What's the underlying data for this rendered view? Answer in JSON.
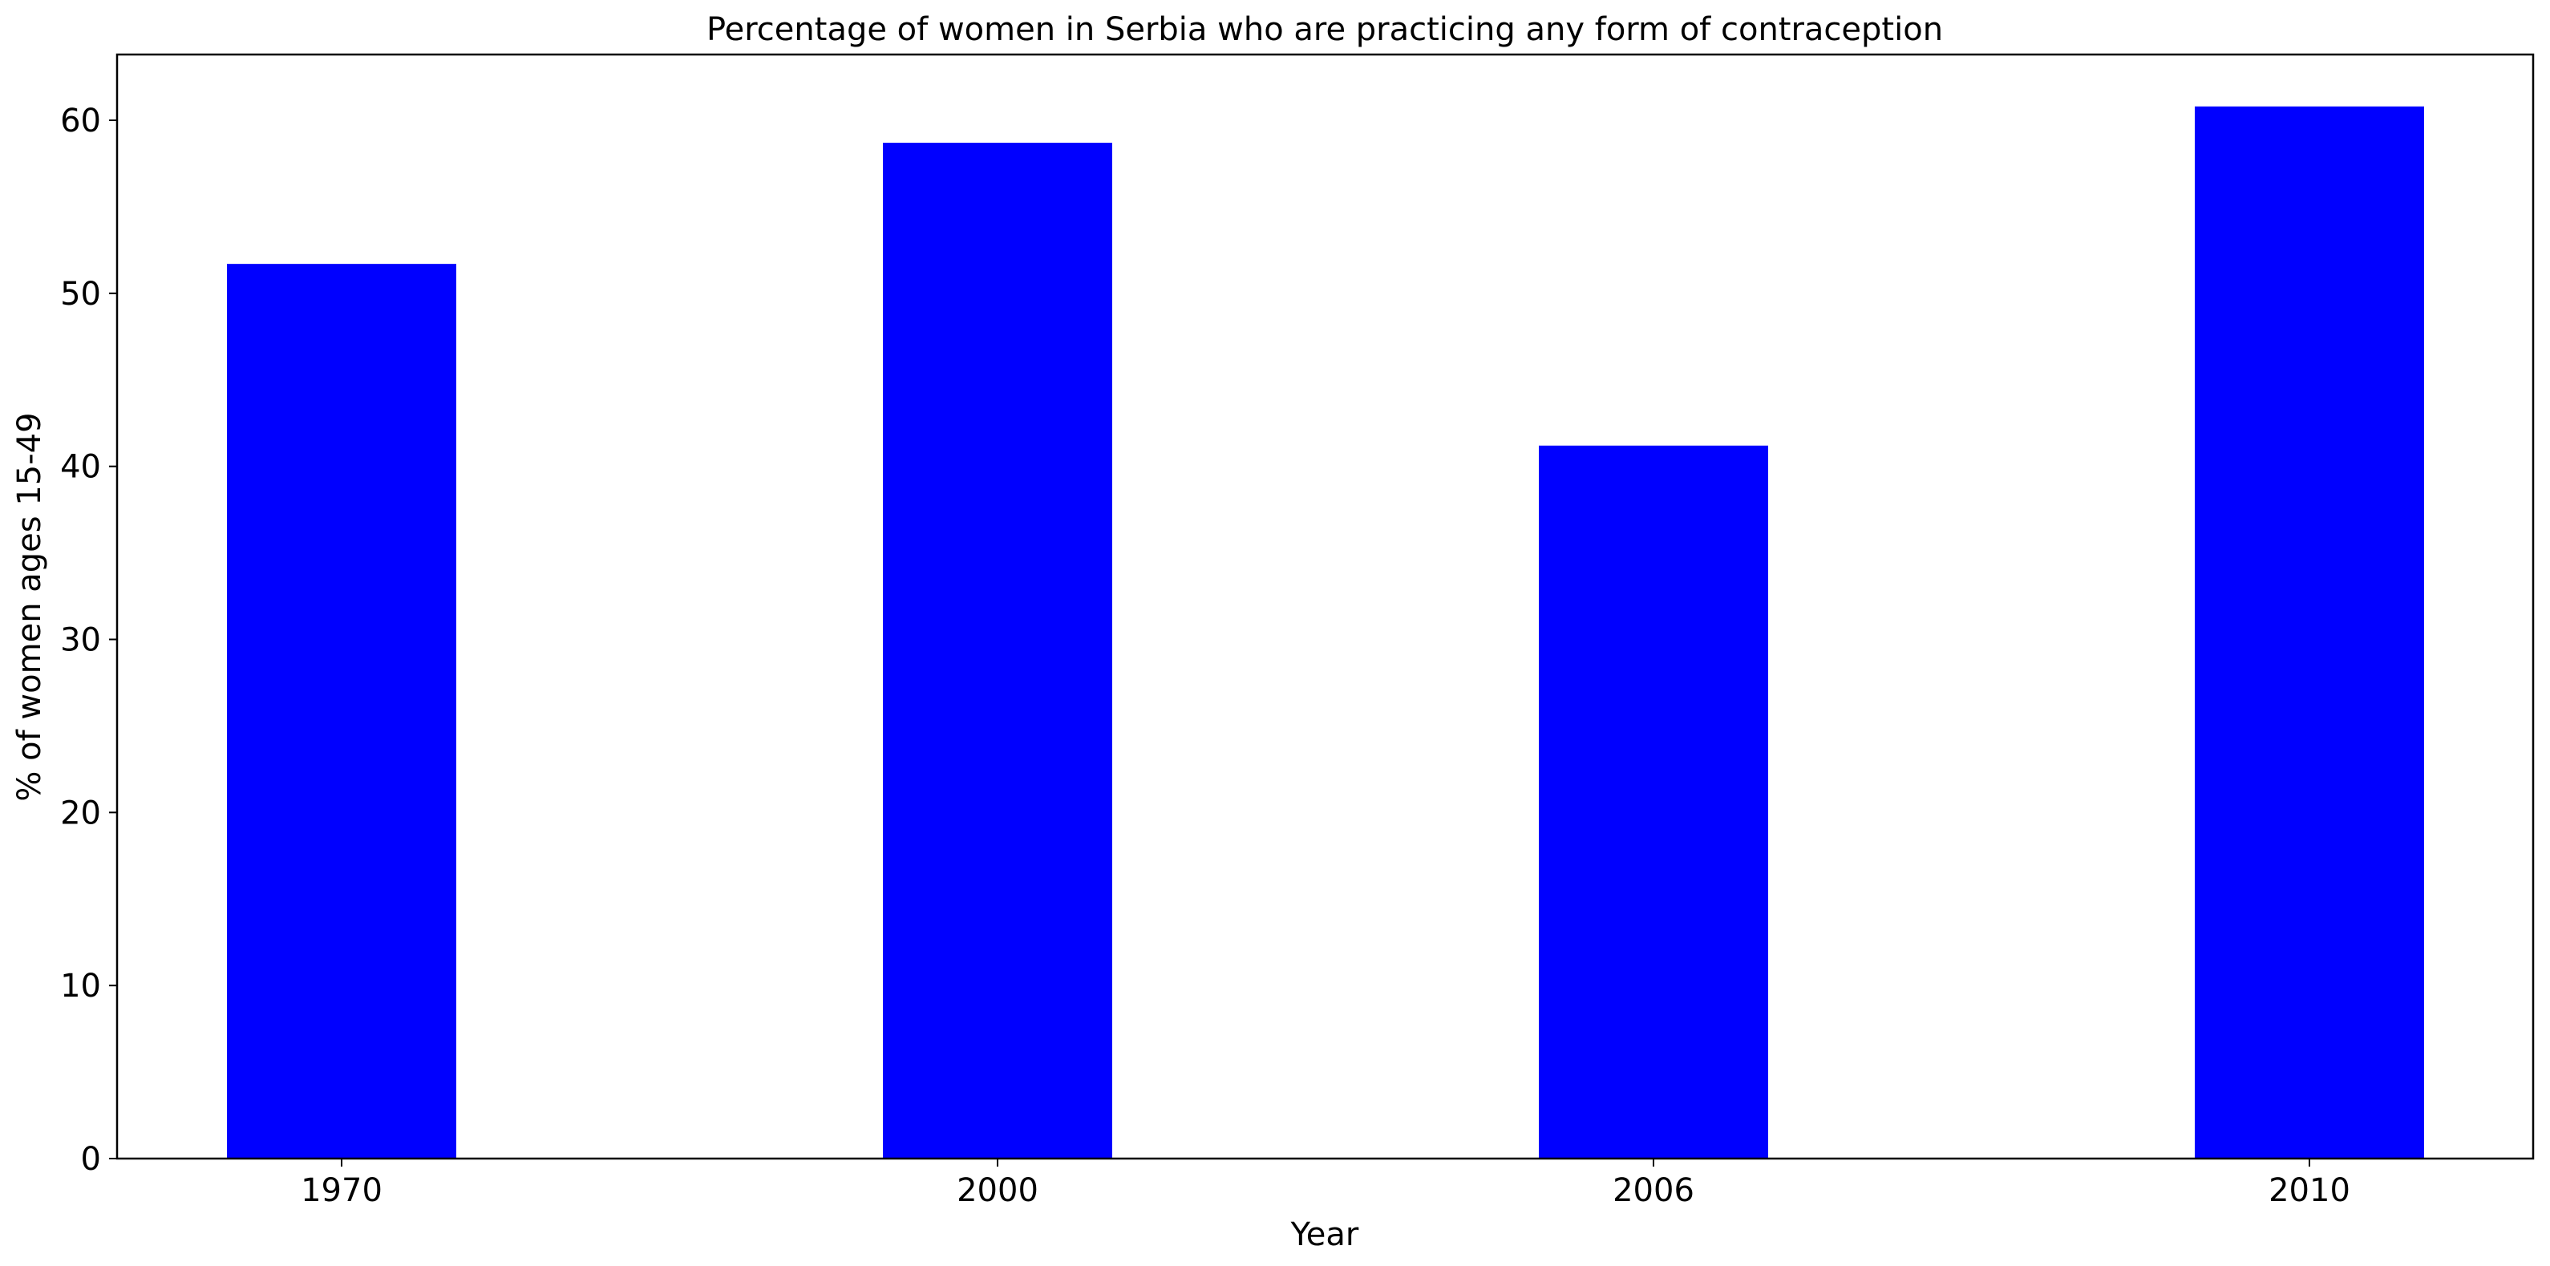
{
  "chart_data": {
    "type": "bar",
    "title": "Percentage of women in Serbia who are practicing any form of contraception",
    "xlabel": "Year",
    "ylabel": "% of women ages 15-49",
    "categories": [
      "1970",
      "2000",
      "2006",
      "2010"
    ],
    "values": [
      51.7,
      58.7,
      41.2,
      60.8
    ],
    "ylim": [
      0,
      63.8
    ],
    "yticks": [
      "0",
      "10",
      "20",
      "30",
      "40",
      "50",
      "60"
    ],
    "grid": false,
    "bar_color": "#0000ff"
  }
}
